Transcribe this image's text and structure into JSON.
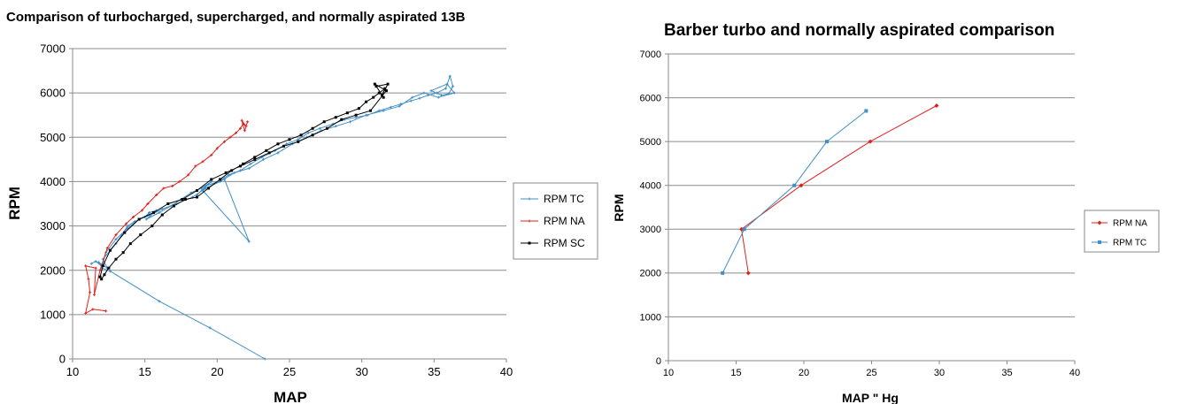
{
  "chart_data": [
    {
      "type": "line",
      "title": "Comparison of turbocharged, supercharged, and normally aspirated 13B",
      "xlabel": "MAP",
      "ylabel": "RPM",
      "xlim": [
        10,
        40
      ],
      "ylim": [
        0,
        7000
      ],
      "xticks": [
        "10",
        "15",
        "20",
        "25",
        "30",
        "35",
        "40"
      ],
      "yticks": [
        "0",
        "1000",
        "2000",
        "3000",
        "4000",
        "5000",
        "6000",
        "7000"
      ],
      "grid": "horizontal",
      "legend_position": "right",
      "series": [
        {
          "name": "RPM TC",
          "color": "#3e8fc8",
          "marker": "cross",
          "points": [
            [
              11.3,
              2150
            ],
            [
              11.6,
              2200
            ],
            [
              12.0,
              2100
            ],
            [
              11.8,
              2180
            ],
            [
              12.4,
              2050
            ],
            [
              12.1,
              2250
            ],
            [
              13.0,
              2600
            ],
            [
              13.8,
              3000
            ],
            [
              14.3,
              3100
            ],
            [
              15.0,
              3200
            ],
            [
              15.3,
              3300
            ],
            [
              15.8,
              3350
            ],
            [
              15.1,
              3150
            ],
            [
              16.0,
              3300
            ],
            [
              16.8,
              3450
            ],
            [
              17.5,
              3600
            ],
            [
              18.2,
              3750
            ],
            [
              18.9,
              3850
            ],
            [
              19.6,
              4000
            ],
            [
              18.6,
              3700
            ],
            [
              19.2,
              3900
            ],
            [
              20.5,
              4050
            ],
            [
              22.2,
              2650
            ],
            [
              19.0,
              3800
            ],
            [
              20.8,
              4150
            ],
            [
              21.6,
              4250
            ],
            [
              22.3,
              4400
            ],
            [
              23.1,
              4550
            ],
            [
              24.0,
              4700
            ],
            [
              24.8,
              4850
            ],
            [
              25.6,
              4950
            ],
            [
              26.3,
              5100
            ],
            [
              27.1,
              5200
            ],
            [
              28.0,
              5300
            ],
            [
              28.8,
              5400
            ],
            [
              29.6,
              5450
            ],
            [
              30.4,
              5500
            ],
            [
              31.2,
              5600
            ],
            [
              32.0,
              5680
            ],
            [
              32.7,
              5750
            ],
            [
              33.4,
              5820
            ],
            [
              34.0,
              5880
            ],
            [
              34.6,
              5950
            ],
            [
              35.2,
              6000
            ],
            [
              35.8,
              6100
            ],
            [
              36.1,
              6380
            ],
            [
              36.3,
              6150
            ],
            [
              36.0,
              5980
            ],
            [
              35.5,
              5950
            ],
            [
              34.8,
              6050
            ],
            [
              35.9,
              6200
            ],
            [
              36.4,
              6000
            ],
            [
              35.3,
              5900
            ],
            [
              34.3,
              6000
            ],
            [
              33.5,
              5900
            ],
            [
              32.6,
              5700
            ],
            [
              31.5,
              5600
            ],
            [
              30.3,
              5500
            ],
            [
              29.2,
              5350
            ],
            [
              28.2,
              5250
            ],
            [
              27.2,
              5150
            ],
            [
              26.2,
              5000
            ],
            [
              25.2,
              4850
            ],
            [
              24.2,
              4650
            ],
            [
              23.2,
              4500
            ],
            [
              22.2,
              4300
            ],
            [
              21.2,
              4200
            ],
            [
              20.2,
              4000
            ],
            [
              19.2,
              3850
            ],
            [
              18.3,
              3650
            ],
            [
              17.2,
              3500
            ],
            [
              16.2,
              3380
            ],
            [
              15.4,
              3250
            ],
            [
              14.6,
              3150
            ],
            [
              13.8,
              2950
            ],
            [
              13.0,
              2700
            ],
            [
              12.3,
              2400
            ],
            [
              12.0,
              2050
            ],
            [
              12.6,
              1980
            ],
            [
              16.0,
              1300
            ],
            [
              19.5,
              700
            ],
            [
              23.3,
              0
            ]
          ]
        },
        {
          "name": "RPM NA",
          "color": "#e0201c",
          "marker": "cross",
          "points": [
            [
              12.3,
              1080
            ],
            [
              11.4,
              1120
            ],
            [
              10.9,
              1030
            ],
            [
              11.2,
              1500
            ],
            [
              11.1,
              1800
            ],
            [
              10.9,
              2100
            ],
            [
              11.6,
              2050
            ],
            [
              11.5,
              1450
            ],
            [
              11.9,
              2000
            ],
            [
              12.4,
              2500
            ],
            [
              13.0,
              2800
            ],
            [
              13.7,
              3050
            ],
            [
              14.2,
              3200
            ],
            [
              14.8,
              3350
            ],
            [
              15.2,
              3500
            ],
            [
              15.8,
              3700
            ],
            [
              16.3,
              3850
            ],
            [
              16.9,
              3900
            ],
            [
              17.4,
              4000
            ],
            [
              18.0,
              4150
            ],
            [
              18.5,
              4350
            ],
            [
              19.0,
              4450
            ],
            [
              19.6,
              4600
            ],
            [
              20.0,
              4750
            ],
            [
              20.5,
              4900
            ],
            [
              20.9,
              5000
            ],
            [
              21.3,
              5100
            ],
            [
              21.6,
              5200
            ],
            [
              21.8,
              5300
            ],
            [
              22.0,
              5250
            ],
            [
              21.7,
              5380
            ],
            [
              21.9,
              5150
            ],
            [
              22.1,
              5350
            ]
          ]
        },
        {
          "name": "RPM SC",
          "color": "#000000",
          "marker": "square",
          "points": [
            [
              12.0,
              1800
            ],
            [
              12.2,
              1900
            ],
            [
              12.5,
              2050
            ],
            [
              13.0,
              2250
            ],
            [
              13.5,
              2400
            ],
            [
              14.0,
              2600
            ],
            [
              14.7,
              2800
            ],
            [
              15.5,
              3000
            ],
            [
              16.2,
              3250
            ],
            [
              17.0,
              3450
            ],
            [
              17.8,
              3600
            ],
            [
              18.6,
              3650
            ],
            [
              19.4,
              3850
            ],
            [
              20.2,
              4050
            ],
            [
              21.0,
              4250
            ],
            [
              21.8,
              4400
            ],
            [
              22.6,
              4550
            ],
            [
              23.4,
              4700
            ],
            [
              24.2,
              4850
            ],
            [
              25.0,
              4950
            ],
            [
              25.8,
              5050
            ],
            [
              26.6,
              5200
            ],
            [
              27.4,
              5350
            ],
            [
              28.2,
              5450
            ],
            [
              29.0,
              5550
            ],
            [
              29.8,
              5650
            ],
            [
              30.3,
              5800
            ],
            [
              30.8,
              5900
            ],
            [
              31.2,
              6000
            ],
            [
              31.6,
              6100
            ],
            [
              31.4,
              5950
            ],
            [
              31.8,
              6200
            ],
            [
              31.0,
              6150
            ],
            [
              31.5,
              5900
            ],
            [
              30.9,
              6200
            ],
            [
              31.7,
              6050
            ],
            [
              30.6,
              5600
            ],
            [
              29.6,
              5500
            ],
            [
              28.6,
              5400
            ],
            [
              27.6,
              5200
            ],
            [
              26.6,
              5050
            ],
            [
              25.6,
              4900
            ],
            [
              24.6,
              4800
            ],
            [
              23.6,
              4650
            ],
            [
              22.6,
              4500
            ],
            [
              21.6,
              4350
            ],
            [
              20.6,
              4200
            ],
            [
              19.6,
              4050
            ],
            [
              18.6,
              3800
            ],
            [
              17.6,
              3600
            ],
            [
              16.6,
              3500
            ],
            [
              15.6,
              3300
            ],
            [
              14.6,
              3150
            ],
            [
              13.6,
              2850
            ],
            [
              12.6,
              2450
            ],
            [
              12.1,
              2100
            ],
            [
              11.9,
              1850
            ]
          ]
        }
      ]
    },
    {
      "type": "line",
      "title": "Barber turbo and normally aspirated comparison",
      "xlabel": "MAP \" Hg",
      "ylabel": "RPM",
      "xlim": [
        10,
        40
      ],
      "ylim": [
        0,
        7000
      ],
      "xticks": [
        "10",
        "15",
        "20",
        "25",
        "30",
        "35",
        "40"
      ],
      "yticks": [
        "0",
        "1000",
        "2000",
        "3000",
        "4000",
        "5000",
        "6000",
        "7000"
      ],
      "grid": "horizontal",
      "legend_position": "right",
      "series": [
        {
          "name": "RPM NA",
          "color": "#e0201c",
          "marker": "diamond",
          "points": [
            [
              15.9,
              2000
            ],
            [
              15.4,
              3000
            ],
            [
              19.8,
              4000
            ],
            [
              24.9,
              5000
            ],
            [
              29.8,
              5820
            ]
          ]
        },
        {
          "name": "RPM TC",
          "color": "#3e8fc8",
          "marker": "square",
          "points": [
            [
              14.0,
              2000
            ],
            [
              15.6,
              3000
            ],
            [
              19.3,
              4000
            ],
            [
              21.7,
              5000
            ],
            [
              24.6,
              5700
            ]
          ]
        }
      ]
    }
  ]
}
